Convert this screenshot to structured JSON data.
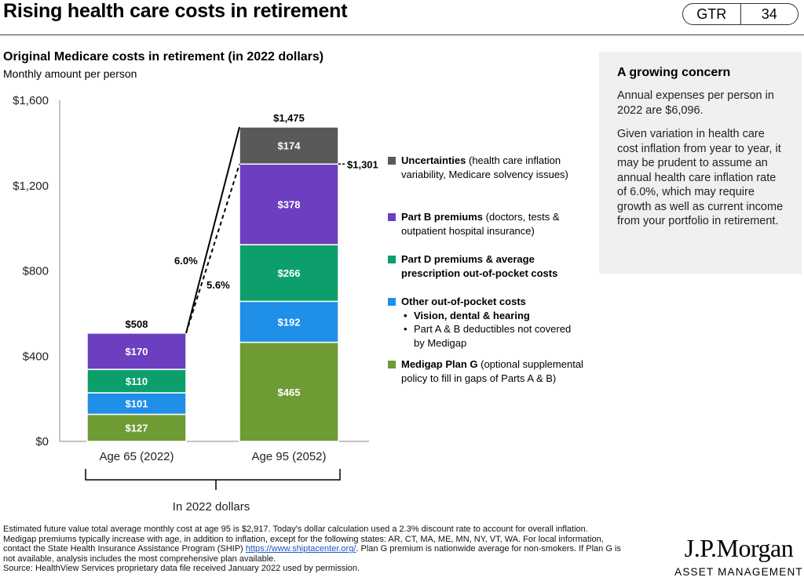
{
  "header": {
    "title": "Rising health care costs in retirement",
    "badge_left": "GTR",
    "badge_right": "34"
  },
  "chart": {
    "title": "Original Medicare costs in retirement (in 2022 dollars)",
    "subtitle": "Monthly amount per person"
  },
  "chart_data": {
    "type": "bar",
    "stacked": true,
    "categories": [
      "Age 65 (2022)",
      "Age 95 (2052)"
    ],
    "ylim": [
      0,
      1600
    ],
    "yticks": [
      0,
      400,
      800,
      1200,
      1600
    ],
    "ytick_labels": [
      "$0",
      "$400",
      "$800",
      "$1,200",
      "$1,600"
    ],
    "series": [
      {
        "key": "medigap",
        "values": [
          127,
          465
        ],
        "labels": [
          "$127",
          "$465"
        ],
        "color": "#6e9b33"
      },
      {
        "key": "oop",
        "values": [
          101,
          192
        ],
        "labels": [
          "$101",
          "$192"
        ],
        "color": "#1f8fe8"
      },
      {
        "key": "partd",
        "values": [
          110,
          266
        ],
        "labels": [
          "$110",
          "$266"
        ],
        "color": "#0c9f6c"
      },
      {
        "key": "partb",
        "values": [
          170,
          378
        ],
        "labels": [
          "$170",
          "$378"
        ],
        "color": "#6b3fbf"
      },
      {
        "key": "uncert",
        "values": [
          0,
          174
        ],
        "labels": [
          "",
          "$174"
        ],
        "color": "#58595b"
      }
    ],
    "totals": [
      508,
      1475
    ],
    "total_labels": [
      "$508",
      "$1,475"
    ],
    "mid_value": 1301,
    "mid_label": "$1,301",
    "growth_solid_label": "6.0%",
    "growth_dashed_label": "5.6%",
    "bracket_label": "In 2022 dollars",
    "grid": false
  },
  "legend": {
    "uncert": {
      "bold": "Uncertainties",
      "rest": " (health care inflation variability, Medicare solvency issues)"
    },
    "partb": {
      "bold": "Part B premiums",
      "rest": " (doctors, tests & outpatient hospital insurance)"
    },
    "partd": {
      "bold": "Part D premiums & average prescription out-of-pocket costs",
      "rest": ""
    },
    "oop": {
      "bold": "Other out-of-pocket costs",
      "bullet1": "Vision, dental & hearing",
      "bullet2": "Part A & B deductibles not covered by Medigap"
    },
    "medigap": {
      "bold": "Medigap Plan G",
      "rest": " (optional supplemental policy to fill in gaps of Parts A & B)"
    }
  },
  "sidebar": {
    "heading": "A growing concern",
    "para1": "Annual expenses per person in 2022 are $6,096.",
    "para2": "Given variation in health care cost inflation from year to year, it may be prudent to assume an annual health care inflation rate of 6.0%, which may require growth as well as current income from your portfolio in retirement."
  },
  "footnote": {
    "text": "Estimated future value total average monthly cost at age 95 is $2,917. Today's dollar calculation used a 2.3% discount rate to account for overall inflation. Medigap premiums typically increase with age, in addition to inflation, except for the following states: AR, CT, MA, ME, MN, NY, VT, WA. For local information, contact the State Health Insurance Assistance Program (SHIP) ",
    "link": "https://www.shiptacenter.org/",
    "text2": ". Plan G premium is nationwide average for non-smokers. If Plan G is not available, analysis includes the most comprehensive plan available.",
    "source": "Source: HealthView Services proprietary data file received January 2022 used by permission."
  },
  "brand": {
    "name": "J.P.Morgan",
    "sub": "ASSET MANAGEMENT"
  }
}
